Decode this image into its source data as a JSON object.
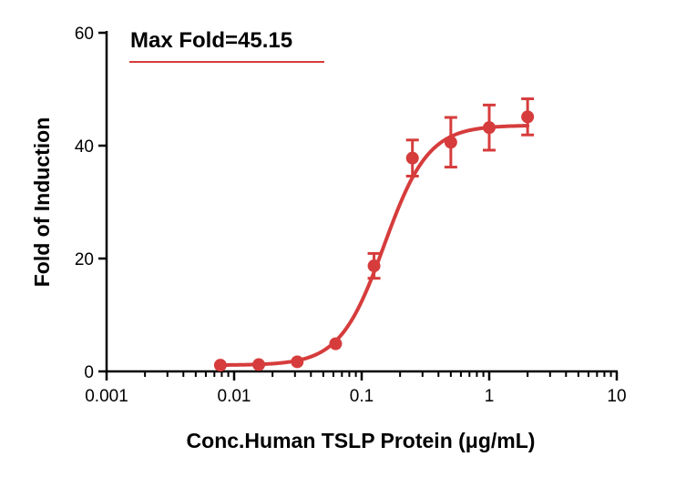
{
  "chart_data": {
    "type": "scatter",
    "title": "",
    "xlabel": "Conc.Human TSLP Protein (μg/mL)",
    "ylabel": "Fold of Induction",
    "xscale": "log",
    "xlim": [
      0.001,
      10
    ],
    "ylim": [
      0,
      60
    ],
    "x_ticks": [
      0.001,
      0.01,
      0.1,
      1,
      10
    ],
    "x_tick_labels": [
      "0.001",
      "0.01",
      "0.1",
      "1",
      "10"
    ],
    "y_ticks": [
      0,
      20,
      40,
      60
    ],
    "y_tick_labels": [
      "0",
      "20",
      "40",
      "60"
    ],
    "legend_text": "Max Fold=45.15",
    "legend_position": "top-left",
    "series": [
      {
        "name": "Max Fold=45.15",
        "color": "#d63c3c",
        "x": [
          0.0078,
          0.0156,
          0.03125,
          0.0625,
          0.125,
          0.25,
          0.5,
          1,
          2
        ],
        "y": [
          1.1,
          1.2,
          1.7,
          4.9,
          18.7,
          37.8,
          40.6,
          43.2,
          45.1
        ],
        "err": [
          0.3,
          0.3,
          0.4,
          0.6,
          2.2,
          3.2,
          4.4,
          4.0,
          3.2
        ]
      }
    ],
    "fit": {
      "type": "4PL",
      "bottom": 1.1,
      "top": 43.6,
      "ec50": 0.15,
      "hill": 2.5
    }
  }
}
